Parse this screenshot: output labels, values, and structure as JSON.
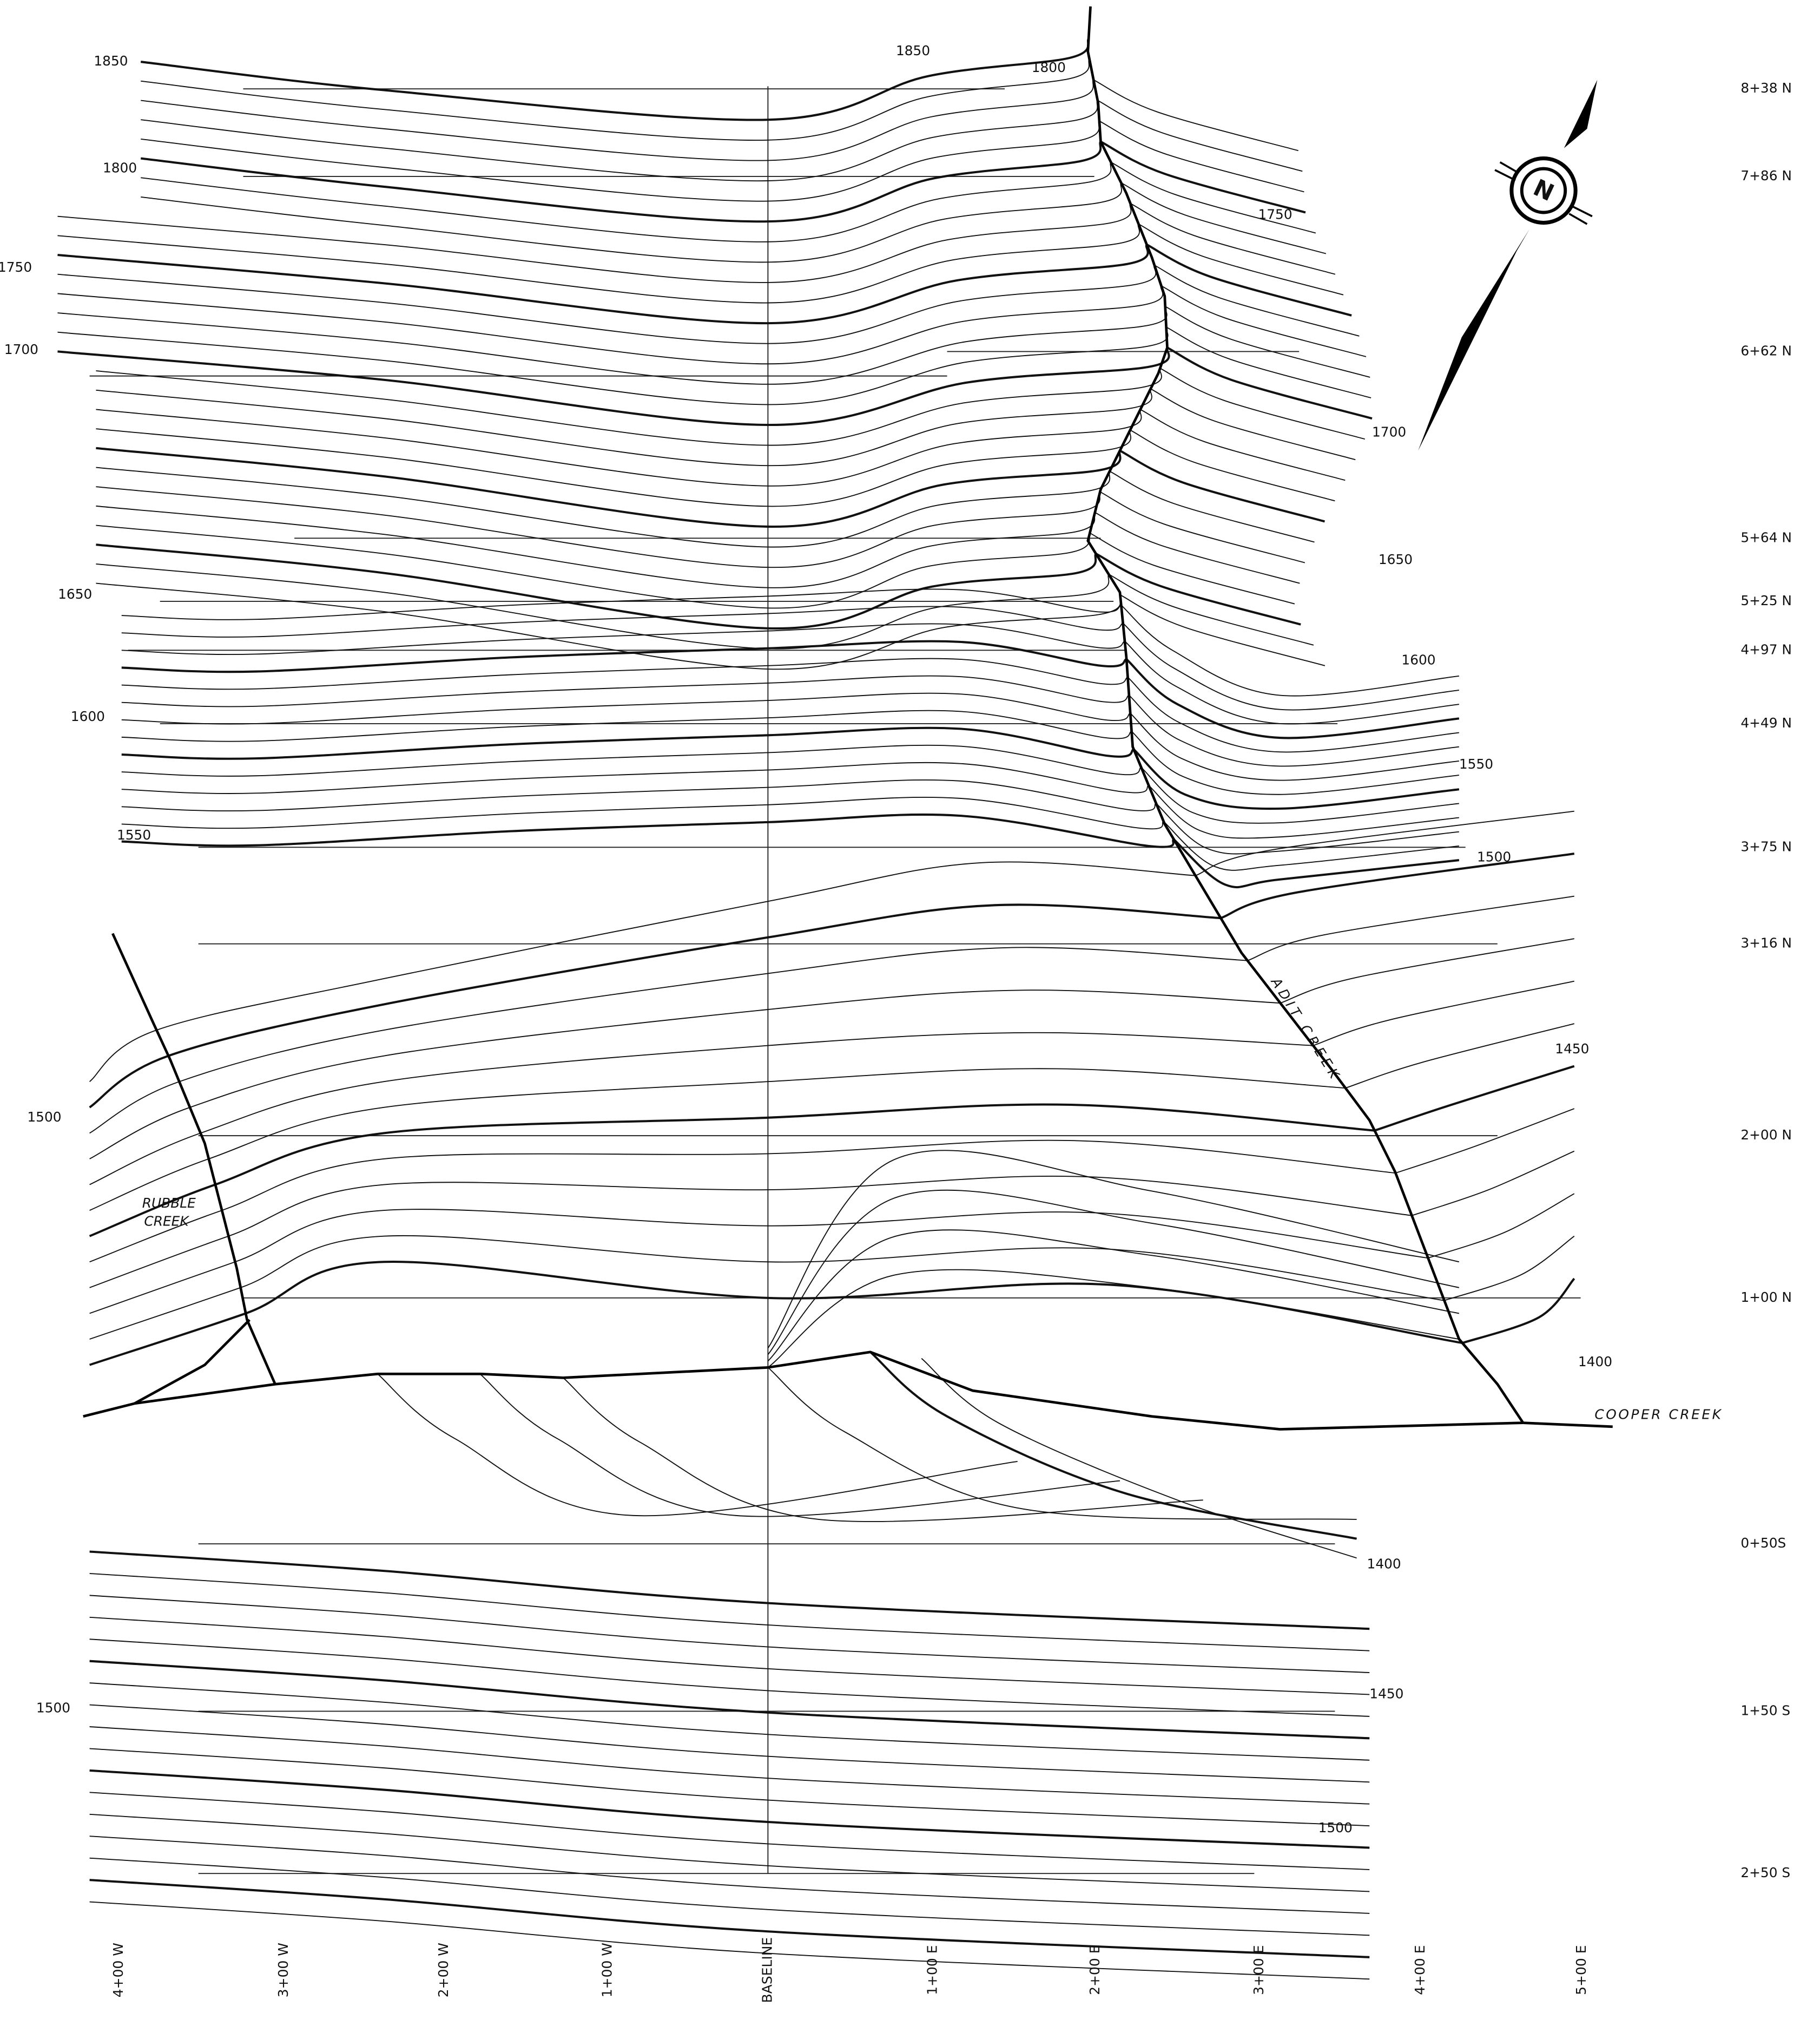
{
  "contour_labels": [
    "1850",
    "1800",
    "1750",
    "1700",
    "1650",
    "1600",
    "1550",
    "1500",
    "1500",
    "1850",
    "1800",
    "1750",
    "1700",
    "1650",
    "1600",
    "1550",
    "1500",
    "1450",
    "1400",
    "1400",
    "1450",
    "1500"
  ],
  "creeks": {
    "rubble": [
      "RUBBLE",
      "CREEK"
    ],
    "adit": "ADIT CREEK",
    "cooper": "COOPER CREEK"
  },
  "stations": [
    "8+38 N",
    "7+86 N",
    "6+62 N",
    "5+64 N",
    "5+25 N",
    "4+97 N",
    "4+49 N",
    "3+75 N",
    "3+16 N",
    "2+00 N",
    "1+00 N",
    "0+50S",
    "1+50 S",
    "2+50 S"
  ],
  "offsets": [
    "4+00 W",
    "3+00 W",
    "2+00 W",
    "1+00 W",
    "BASELINE",
    "1+00 E",
    "2+00 E",
    "3+00 E",
    "4+00 E",
    "5+00 E"
  ],
  "north_arrow": "N"
}
